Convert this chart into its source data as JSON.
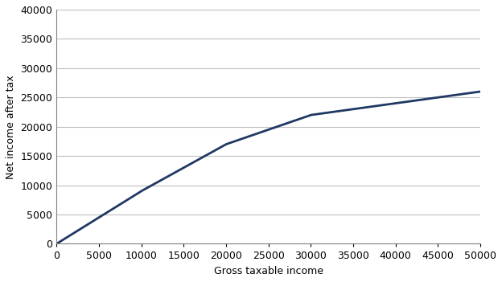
{
  "title": "",
  "xlabel": "Gross taxable income",
  "ylabel": "Net income after tax",
  "line_color": "#1F3864",
  "background_color": "#ffffff",
  "grid_color": "#bfbfbf",
  "xlim": [
    0,
    50000
  ],
  "ylim": [
    0,
    40000
  ],
  "xticks": [
    0,
    5000,
    10000,
    15000,
    20000,
    25000,
    30000,
    35000,
    40000,
    45000,
    50000
  ],
  "yticks": [
    0,
    5000,
    10000,
    15000,
    20000,
    25000,
    30000,
    35000,
    40000
  ],
  "tax_brackets": [
    {
      "limit": 10000,
      "rate": 0.1
    },
    {
      "limit": 20000,
      "rate": 0.2
    },
    {
      "limit": 30000,
      "rate": 0.5
    },
    {
      "limit": 50000,
      "rate": 0.8
    }
  ],
  "line_width": 2.0,
  "font_size": 9,
  "tick_label_size": 9
}
